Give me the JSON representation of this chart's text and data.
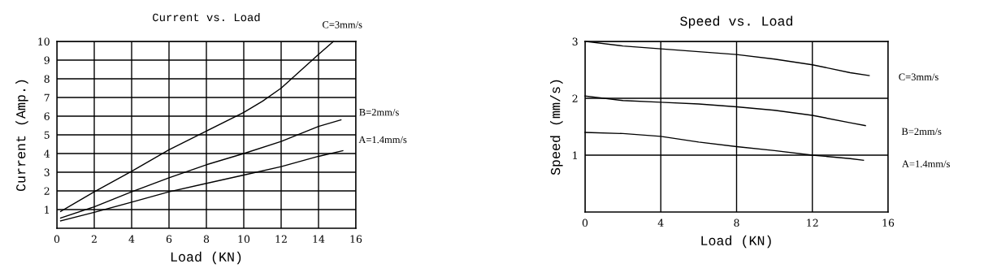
{
  "chart_data": [
    {
      "type": "line",
      "title": "Current vs. Load",
      "xlabel": "Load (KN)",
      "ylabel": "Current (Amp.)",
      "xlim": [
        0,
        16
      ],
      "ylim": [
        0,
        10
      ],
      "xticks": [
        0,
        2,
        4,
        6,
        8,
        10,
        12,
        14,
        16
      ],
      "yticks": [
        1,
        2,
        3,
        4,
        5,
        6,
        7,
        8,
        9,
        10
      ],
      "grid": true,
      "legend": false,
      "series": [
        {
          "name": "C=3mm/s",
          "color": "#000000",
          "x": [
            0.2,
            2,
            4,
            6,
            8,
            10,
            11,
            12,
            13,
            14,
            14.8
          ],
          "values": [
            0.9,
            1.95,
            3.05,
            4.2,
            5.2,
            6.2,
            6.8,
            7.5,
            8.4,
            9.3,
            10
          ]
        },
        {
          "name": "B=2mm/s",
          "color": "#000000",
          "x": [
            0.2,
            2,
            4,
            6,
            8,
            10,
            12,
            14,
            15.2
          ],
          "values": [
            0.55,
            1.15,
            1.95,
            2.7,
            3.4,
            4.0,
            4.65,
            5.45,
            5.8
          ]
        },
        {
          "name": "A=1.4mm/s",
          "color": "#000000",
          "x": [
            0.2,
            2,
            4,
            6,
            8,
            10,
            12,
            14,
            15.3
          ],
          "values": [
            0.4,
            0.85,
            1.4,
            1.95,
            2.4,
            2.85,
            3.3,
            3.85,
            4.15
          ]
        }
      ]
    },
    {
      "type": "line",
      "title": "Speed vs. Load",
      "xlabel": "Load (KN)",
      "ylabel": "Speed (mm/s)",
      "xlim": [
        0,
        16
      ],
      "ylim": [
        0,
        3
      ],
      "xticks": [
        0,
        4,
        8,
        12,
        16
      ],
      "yticks": [
        1,
        2,
        3
      ],
      "grid": true,
      "legend": false,
      "series": [
        {
          "name": "C=3mm/s",
          "color": "#000000",
          "x": [
            0,
            2,
            4,
            6,
            8,
            10,
            12,
            14,
            15
          ],
          "values": [
            3.0,
            2.92,
            2.87,
            2.82,
            2.77,
            2.69,
            2.59,
            2.45,
            2.4
          ]
        },
        {
          "name": "B=2mm/s",
          "color": "#000000",
          "x": [
            0,
            2,
            4,
            6,
            8,
            10,
            12,
            14,
            14.8
          ],
          "values": [
            2.04,
            1.96,
            1.93,
            1.9,
            1.85,
            1.79,
            1.7,
            1.57,
            1.52
          ]
        },
        {
          "name": "A=1.4mm/s",
          "color": "#000000",
          "x": [
            0,
            2,
            4,
            6,
            8,
            10,
            12,
            14,
            14.7
          ],
          "values": [
            1.4,
            1.38,
            1.33,
            1.23,
            1.15,
            1.08,
            1.0,
            0.94,
            0.91
          ]
        }
      ]
    }
  ]
}
